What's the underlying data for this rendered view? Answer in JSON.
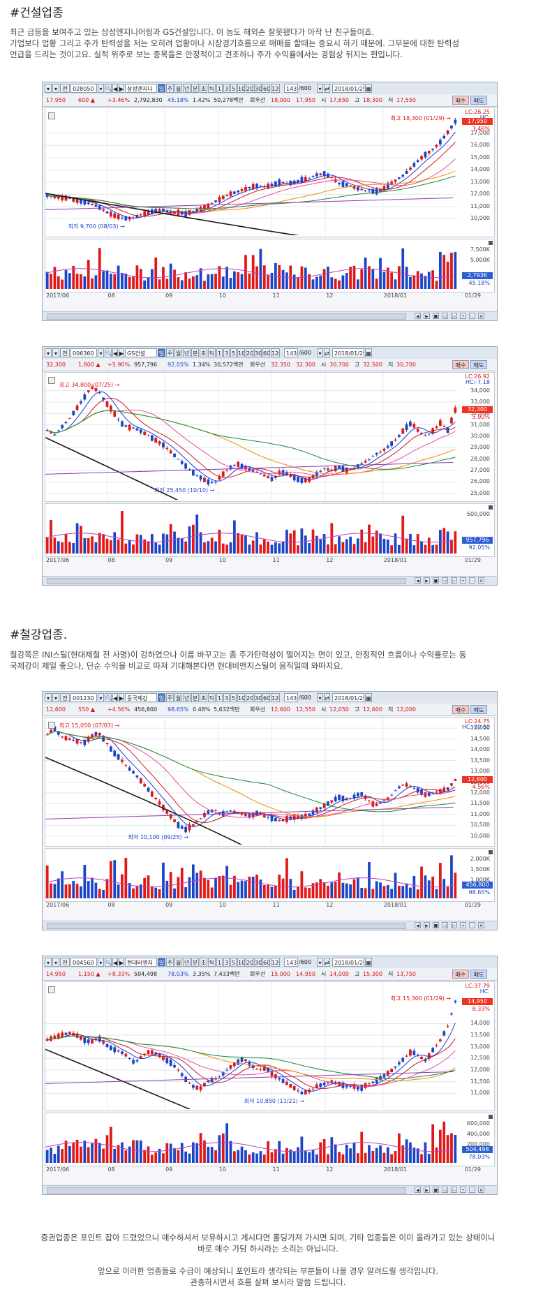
{
  "sections": [
    {
      "title": "#건설업종",
      "paragraph_lines": [
        "최근 급등을 보여주고 있는 삼성엔지니어링과 GS건설입니다. 이 놈도 해외손 잘못됐다가 아작 난 친구들이죠.",
        "기업보다 업황 그리고 주가 탄력성을 저는 오히려 업황이나 시장경기흐름으로 매매를 할때는 중요시 하기 때문에. 그부분에 대한 탄력성",
        "언급을 드리는 것이고요. 실적 위주로 보는 종목들은 안정적이고 견조하나 주가 수익률에서는 경험상 뒤지는 편입니다."
      ]
    },
    {
      "title": "#철강업종.",
      "paragraph_lines": [
        "철강쪽은 INI스틸(현대제철 전 사명)이 강하였으나 이름 바꾸고는 좀  주가탄력성이 떨어지는 면이 있고, 안정적인 흐름이나 수익률로는 동",
        "국제강이 제일 좋으나, 단순 수익을 비교로 따져 기대해본다면 현대비앤지스틸이 움직일때 와따지요."
      ]
    }
  ],
  "toolbar_common": {
    "period_label": "전",
    "day_buttons": [
      "일",
      "주",
      "월",
      "년",
      "분",
      "초",
      "틱"
    ],
    "interval_buttons": [
      "1",
      "3",
      "5",
      "10",
      "20",
      "30",
      "60",
      "120"
    ],
    "count": "143",
    "count_total": "600",
    "date": "2018/01/29",
    "buy_label": "매수",
    "sell_label": "매도",
    "credit_label": "회우선",
    "open_label": "시",
    "high_label": "고",
    "low_label": "저",
    "current_date_label": "01/29"
  },
  "charts": [
    {
      "code": "028050",
      "name": "삼성엔지니",
      "price": "17,950",
      "change": "600",
      "change_pct": "+3.46%",
      "volume": "2,792,830",
      "vol_ratio": "45.18%",
      "turnover": "1.42%",
      "amount": "50,278백만",
      "credit": "18,000",
      "open": "17,950",
      "high": "17,650",
      "low_label_val": "18,300",
      "last": "17,550",
      "high_note": "최고 18,300 (01/29)",
      "low_note": "최저 9,700 (08/03)",
      "ex_note": "",
      "axis_labels": [
        "17,000",
        "16,000",
        "15,000",
        "14,000",
        "13,000",
        "12,000",
        "11,000",
        "10,000"
      ],
      "axis_min": 9000,
      "axis_max": 18700,
      "vol_axis": [
        "7,500K",
        "5,000K"
      ],
      "vol_tag": "2,793K",
      "vol_pct": "45.18%",
      "current_tag": "17,950",
      "current_pct": "3.46%",
      "top_right": [
        "LC:26.25",
        "HC:"
      ],
      "dates": [
        "2017/06",
        "08",
        "09",
        "10",
        "11",
        "12",
        "2018/01",
        "01/29"
      ],
      "chart_data": {
        "type": "line",
        "series": [
          {
            "values": [
              11900,
              11800,
              11700,
              11700,
              11500,
              11400,
              11200,
              11000,
              10600,
              10300,
              10100,
              10000,
              10100,
              10400,
              10500,
              10700,
              10700,
              10500,
              10500,
              10400,
              10600,
              10800,
              11000,
              11400,
              11700,
              12000,
              12200,
              12400,
              12600,
              12700,
              12600,
              12800,
              13000,
              12900,
              13000,
              13200,
              13300,
              13600,
              13700,
              13400,
              12900,
              12800,
              12600,
              12400,
              12300,
              12200,
              12400,
              12800,
              13200,
              13600,
              14200,
              14800,
              15300,
              15700,
              16300,
              17100,
              17950
            ]
          }
        ],
        "ylim": [
          9000,
          18700
        ]
      }
    },
    {
      "code": "006360",
      "name": "GS건설",
      "price": "32,300",
      "change": "1,800",
      "change_pct": "+5.90%",
      "volume": "957,796",
      "vol_ratio": "92.05%",
      "turnover": "1.34%",
      "amount": "30,572백만",
      "credit": "32,350",
      "open": "32,300",
      "high": "30,700",
      "low_label_val": "32,500",
      "last": "30,700",
      "high_note": "최고 34,800 (07/25)",
      "low_note": "최저 25,450 (10/10)",
      "ex_note": "",
      "axis_labels": [
        "34,000",
        "33,000",
        "32,000",
        "31,000",
        "30,000",
        "29,000",
        "28,000",
        "27,000",
        "26,000",
        "25,000"
      ],
      "axis_min": 24800,
      "axis_max": 35200,
      "vol_axis": [
        "500,000"
      ],
      "vol_tag": "957,796",
      "vol_pct": "92.05%",
      "current_tag": "32,300",
      "current_pct": "5.90%",
      "top_right": [
        "LC:26.92",
        "HC:-7.18"
      ],
      "dates": [
        "2017/06",
        "08",
        "09",
        "10",
        "11",
        "12",
        "2018/01",
        "01/29"
      ],
      "chart_data": {
        "type": "line",
        "series": [
          {
            "values": [
              30500,
              30100,
              30800,
              31500,
              32400,
              33300,
              34300,
              34000,
              33000,
              32200,
              31200,
              30800,
              30700,
              30400,
              30000,
              29600,
              29200,
              28600,
              28000,
              27400,
              26800,
              26400,
              26000,
              25900,
              26600,
              27200,
              27600,
              27300,
              27000,
              26800,
              26500,
              26200,
              26900,
              26700,
              26300,
              26100,
              26200,
              26700,
              27200,
              27000,
              27300,
              27000,
              27200,
              27500,
              27900,
              28400,
              28700,
              29200,
              29800,
              30600,
              31200,
              30400,
              30000,
              30500,
              31200,
              30500,
              32300
            ]
          }
        ],
        "ylim": [
          24800,
          35200
        ]
      }
    },
    {
      "code": "001230",
      "name": "동국제강",
      "price": "12,600",
      "change": "550",
      "change_pct": "+4.56%",
      "volume": "456,800",
      "vol_ratio": "98.65%",
      "turnover": "0.48%",
      "amount": "5,632백만",
      "credit": "12,600",
      "open": "12,550",
      "high": "12,050",
      "low_label_val": "12,600",
      "last": "12,000",
      "high_note": "최고 15,050 (07/03)",
      "low_note": "최저 10,100 (09/25)",
      "ex_note": "",
      "axis_labels": [
        "15,000",
        "14,500",
        "14,000",
        "13,500",
        "13,000",
        "12,500",
        "12,000",
        "11,500",
        "11,000",
        "10,500",
        "10,000"
      ],
      "axis_min": 9800,
      "axis_max": 15300,
      "vol_axis": [
        "2,000K",
        "1,500K",
        "1,000K"
      ],
      "vol_tag": "456,800",
      "vol_pct": "98.65%",
      "current_tag": "12,600",
      "current_pct": "4.56%",
      "top_right": [
        "LC:24.75",
        "HC:-20.50"
      ],
      "dates": [
        "2017/06",
        "08",
        "09",
        "10",
        "11",
        "12",
        "2018/01",
        "01/29"
      ],
      "chart_data": {
        "type": "line",
        "series": [
          {
            "values": [
              14700,
              15000,
              14600,
              14500,
              14400,
              14300,
              14600,
              14800,
              14400,
              13900,
              13600,
              13200,
              12900,
              12500,
              12100,
              11700,
              11300,
              10900,
              10500,
              10300,
              10500,
              10800,
              11100,
              11200,
              11000,
              11200,
              11100,
              11000,
              10900,
              11100,
              10900,
              10800,
              10700,
              10800,
              10900,
              10900,
              11000,
              11200,
              11400,
              11600,
              11800,
              11700,
              11800,
              12000,
              11700,
              11400,
              11600,
              11800,
              12200,
              12400,
              12300,
              12100,
              11900,
              12000,
              12100,
              12200,
              12600
            ]
          }
        ],
        "ylim": [
          9800,
          15300
        ]
      }
    },
    {
      "code": "004560",
      "name": "현대비앤지",
      "price": "14,950",
      "change": "1,150",
      "change_pct": "+8.33%",
      "volume": "504,498",
      "vol_ratio": "78.03%",
      "turnover": "3.35%",
      "amount": "7,433백만",
      "credit": "15,000",
      "open": "14,950",
      "high": "14,000",
      "low_label_val": "15,300",
      "last": "13,750",
      "high_note": "최고 15,300 (01/29)",
      "low_note": "최저 10,850 (11/21)",
      "ex_note": "",
      "axis_labels": [
        "14,000",
        "13,500",
        "13,000",
        "12,500",
        "12,000",
        "11,500",
        "11,000"
      ],
      "axis_min": 10500,
      "axis_max": 15600,
      "vol_axis": [
        "600,000",
        "400,000",
        "200,000"
      ],
      "vol_tag": "504,498",
      "vol_pct": "78.03%",
      "current_tag": "14,950",
      "current_pct": "8.33%",
      "top_right": [
        "LC:37.79",
        "HC:"
      ],
      "dates": [
        "2017/06",
        "08",
        "09",
        "10",
        "11",
        "12",
        "2018/01",
        "01/29"
      ],
      "chart_data": {
        "type": "line",
        "series": [
          {
            "values": [
              13300,
              13400,
              13500,
              13600,
              13500,
              13300,
              13200,
              13400,
              13100,
              12900,
              12800,
              12600,
              12300,
              12600,
              12800,
              12700,
              12500,
              12300,
              12000,
              11600,
              11300,
              11200,
              11500,
              11600,
              11800,
              12100,
              12300,
              12500,
              12200,
              12000,
              12100,
              11800,
              11600,
              11400,
              11200,
              11000,
              11100,
              11300,
              11400,
              11500,
              11400,
              11300,
              11300,
              11200,
              11400,
              11500,
              11700,
              11900,
              12200,
              12500,
              12800,
              12600,
              12400,
              12900,
              13300,
              13900,
              14950
            ]
          }
        ],
        "ylim": [
          10500,
          15600
        ]
      }
    }
  ],
  "ma_colors": [
    "#1a1a1a",
    "#1a3fd0",
    "#d41b1b",
    "#f08c00",
    "#1a8a3a",
    "#8b3cb8",
    "#e64ea0"
  ],
  "up_color": "#e01818",
  "down_color": "#1a45c8",
  "closing_lines": [
    "증권업종은 포인트 잡아 드렸었으니 매수하셔서 보유하시고 계시다면 홀딩가져 가시면 되며, 기타 업종들은 이미 올라가고 있는 상태이니",
    "바로 매수 가담 하시라는 소리는 아닙니다.",
    "",
    "앞으로 이러한 업종들로 수급이 예상되니 포인트라 생각되는 부분들이 나올 경우 알려드릴 생각입니다.",
    "관종하시면서 흐름 살펴 보시라 말씀 드립니다."
  ]
}
